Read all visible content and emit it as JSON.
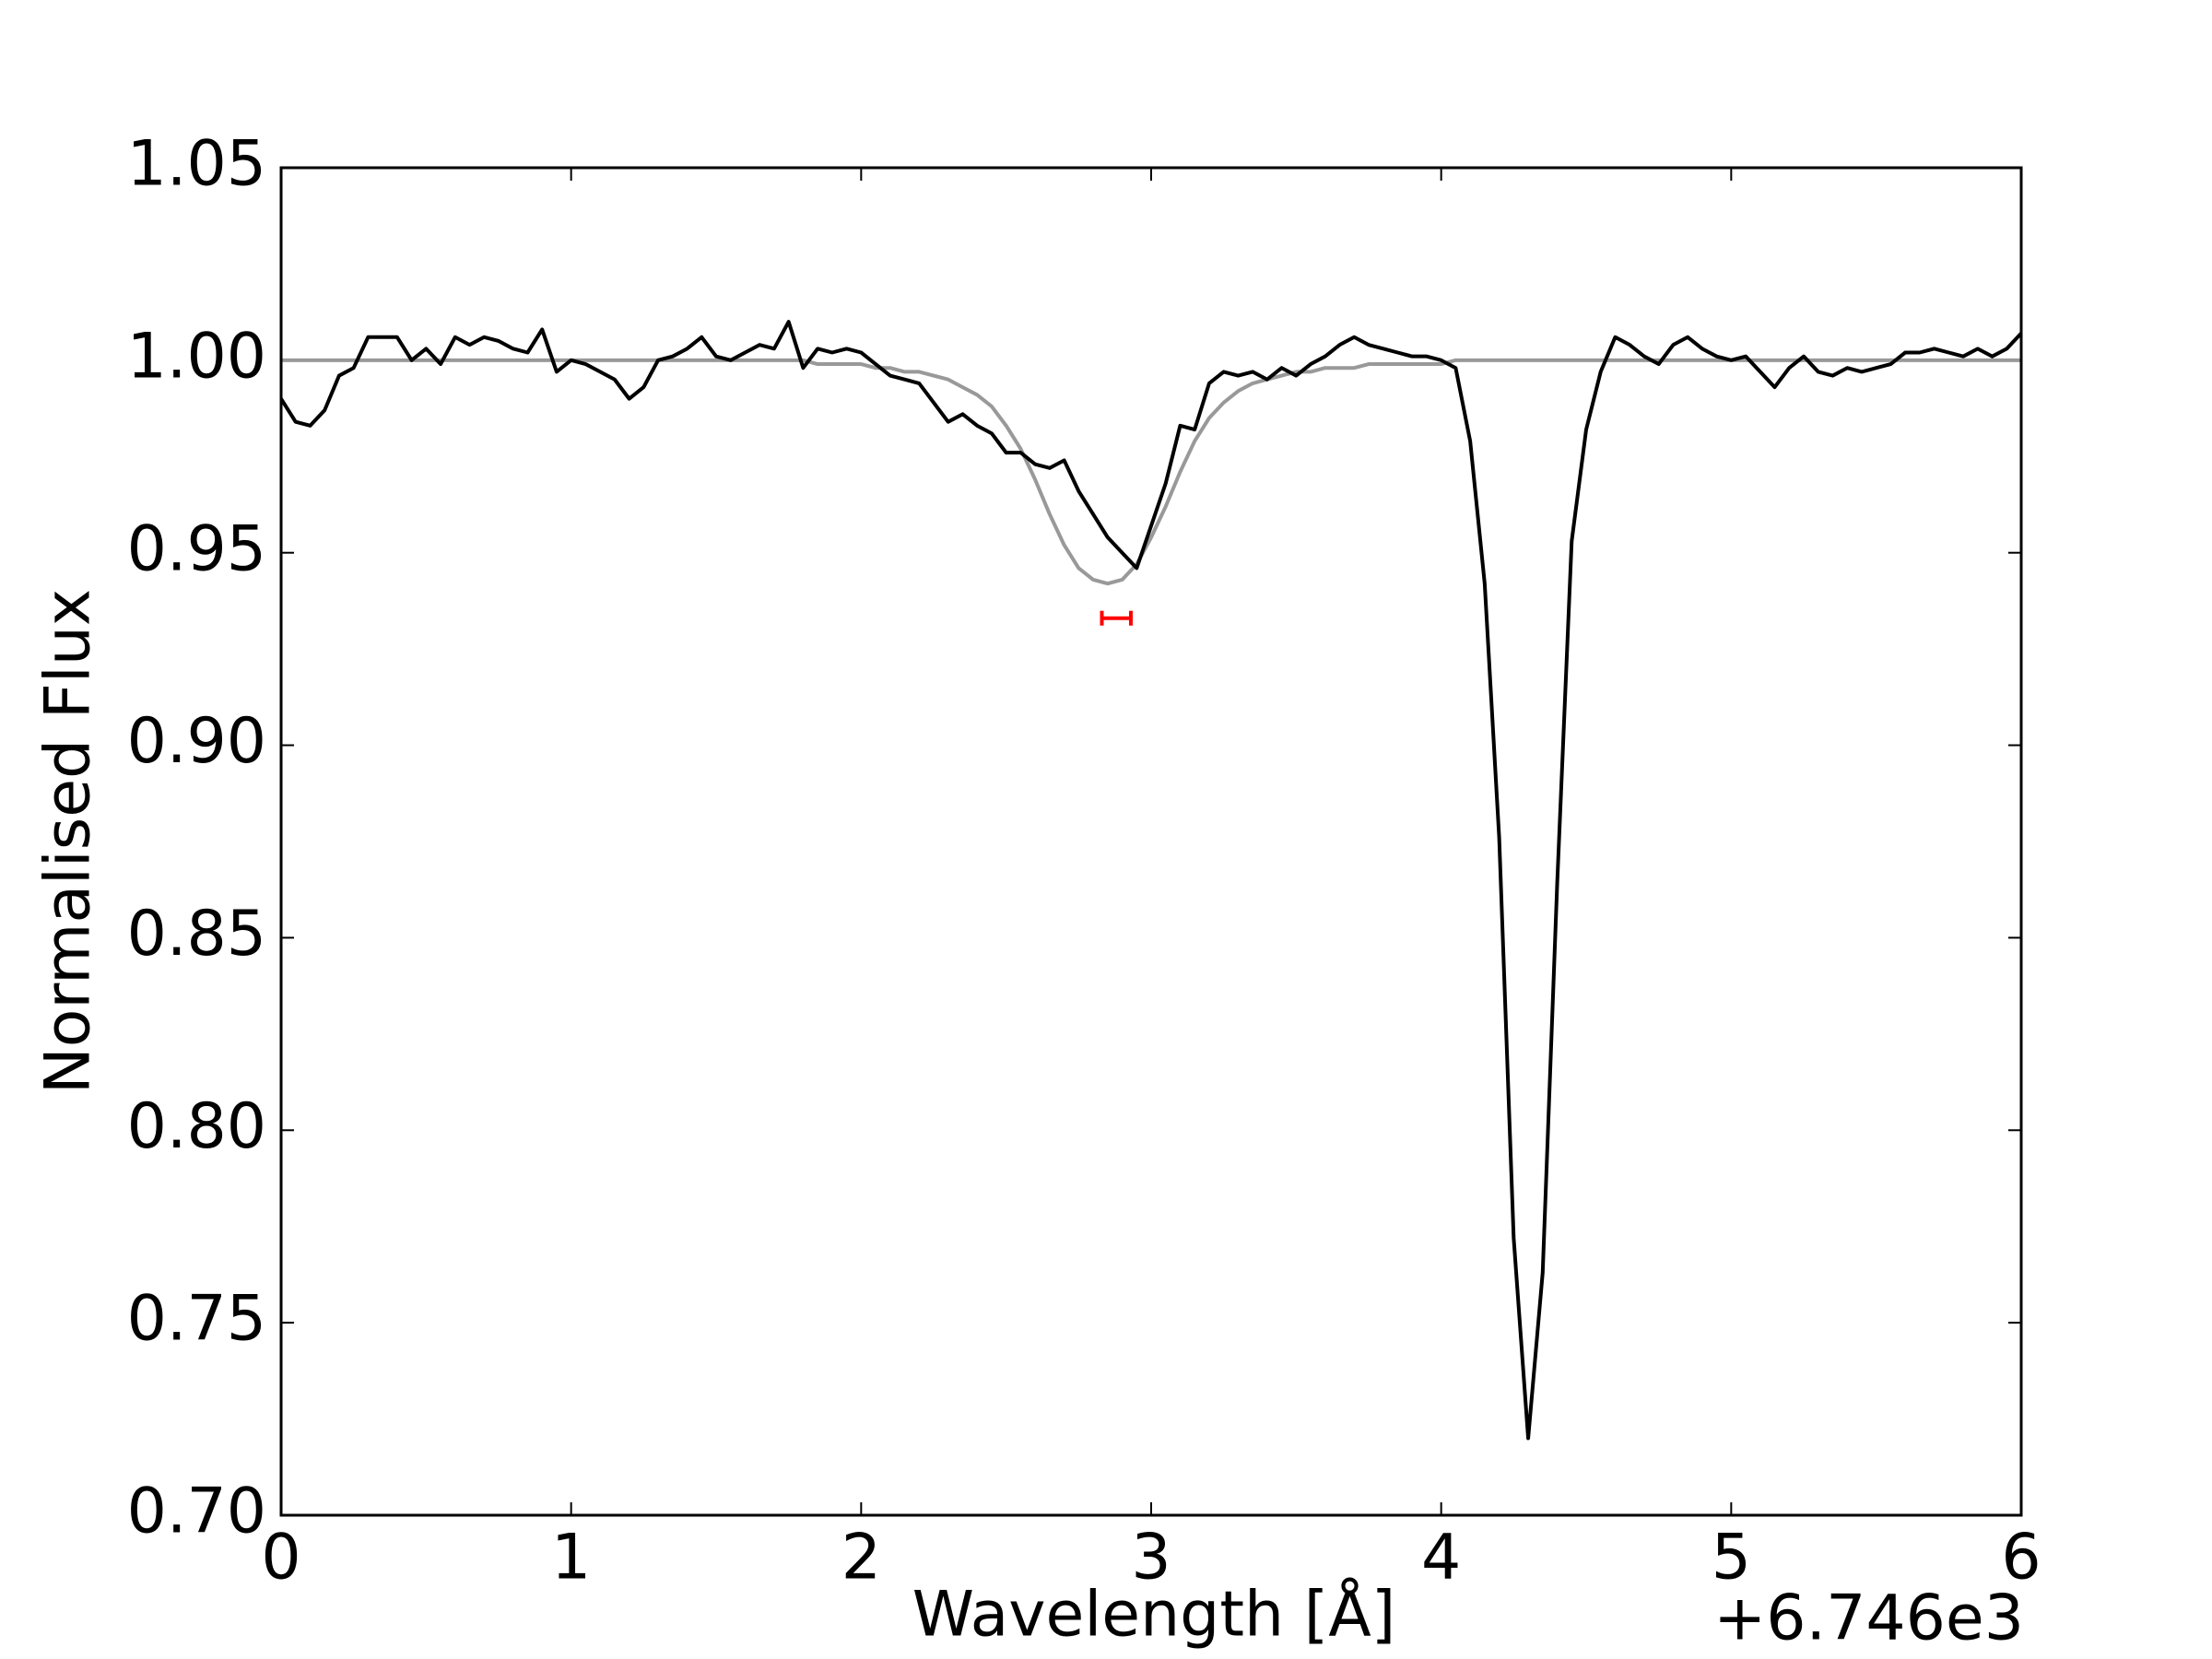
{
  "chart_data": {
    "type": "line",
    "x_label": "Wavelength [Å]",
    "y_label": "Normalised Flux",
    "x_offset_label": "+6.746e3",
    "x": [
      0,
      0.05,
      0.1,
      0.15,
      0.2,
      0.25,
      0.3,
      0.35,
      0.4,
      0.45,
      0.5,
      0.55,
      0.6,
      0.65,
      0.7,
      0.75,
      0.8,
      0.85,
      0.9,
      0.95,
      1,
      1.05,
      1.1,
      1.15,
      1.2,
      1.25,
      1.3,
      1.35,
      1.4,
      1.45,
      1.5,
      1.55,
      1.6,
      1.65,
      1.7,
      1.75,
      1.8,
      1.85,
      1.9,
      1.95,
      2,
      2.05,
      2.1,
      2.15,
      2.2,
      2.25,
      2.3,
      2.35,
      2.4,
      2.45,
      2.5,
      2.55,
      2.6,
      2.65,
      2.7,
      2.75,
      2.8,
      2.85,
      2.9,
      2.95,
      3,
      3.05,
      3.1,
      3.15,
      3.2,
      3.25,
      3.3,
      3.35,
      3.4,
      3.45,
      3.5,
      3.55,
      3.6,
      3.65,
      3.7,
      3.75,
      3.8,
      3.85,
      3.9,
      3.95,
      4,
      4.05,
      4.1,
      4.15,
      4.2,
      4.25,
      4.3,
      4.35,
      4.4,
      4.45,
      4.5,
      4.55,
      4.6,
      4.65,
      4.7,
      4.75,
      4.8,
      4.85,
      4.9,
      4.95,
      5,
      5.05,
      5.1,
      5.15,
      5.2,
      5.25,
      5.3,
      5.35,
      5.4,
      5.45,
      5.5,
      5.55,
      5.6,
      5.65,
      5.7,
      5.75,
      5.8,
      5.85,
      5.9,
      5.95,
      6
    ],
    "series": [
      {
        "color": "#000000",
        "values": [
          0.99,
          0.984,
          0.983,
          0.987,
          0.996,
          0.998,
          1.006,
          1.006,
          1.006,
          1.0,
          1.003,
          0.999,
          1.006,
          1.004,
          1.006,
          1.005,
          1.003,
          1.002,
          1.008,
          0.997,
          1.0,
          0.999,
          0.997,
          0.995,
          0.99,
          0.993,
          1.0,
          1.001,
          1.003,
          1.006,
          1.001,
          1.0,
          1.002,
          1.004,
          1.003,
          1.01,
          0.998,
          1.003,
          1.002,
          1.003,
          1.002,
          0.999,
          0.996,
          0.995,
          0.994,
          0.989,
          0.984,
          0.986,
          0.983,
          0.981,
          0.976,
          0.976,
          0.973,
          0.972,
          0.974,
          0.966,
          0.96,
          0.954,
          0.95,
          0.946,
          0.957,
          0.968,
          0.983,
          0.982,
          0.994,
          0.997,
          0.996,
          0.997,
          0.995,
          0.998,
          0.996,
          0.999,
          1.001,
          1.004,
          1.006,
          1.004,
          1.003,
          1.002,
          1.001,
          1.001,
          1.0,
          0.998,
          0.979,
          0.942,
          0.876,
          0.772,
          0.72,
          0.763,
          0.864,
          0.953,
          0.982,
          0.997,
          1.006,
          1.004,
          1.001,
          0.999,
          1.004,
          1.006,
          1.003,
          1.001,
          1.0,
          1.001,
          0.997,
          0.993,
          0.998,
          1.001,
          0.997,
          0.996,
          0.998,
          0.997,
          0.998,
          0.999,
          1.002,
          1.002,
          1.003,
          1.002,
          1.001,
          1.003,
          1.001,
          1.003,
          1.007
        ]
      },
      {
        "color": "#999999",
        "values": [
          1.0,
          1.0,
          1.0,
          1.0,
          1.0,
          1.0,
          1.0,
          1.0,
          1.0,
          1.0,
          1.0,
          1.0,
          1.0,
          1.0,
          1.0,
          1.0,
          1.0,
          1.0,
          1.0,
          1.0,
          1.0,
          1.0,
          1.0,
          1.0,
          1.0,
          1.0,
          1.0,
          1.0,
          1.0,
          1.0,
          1.0,
          1.0,
          1.0,
          1.0,
          1.0,
          1.0,
          1.0,
          0.999,
          0.999,
          0.999,
          0.999,
          0.998,
          0.998,
          0.997,
          0.997,
          0.996,
          0.995,
          0.993,
          0.991,
          0.988,
          0.983,
          0.977,
          0.969,
          0.96,
          0.952,
          0.946,
          0.943,
          0.942,
          0.943,
          0.947,
          0.954,
          0.962,
          0.971,
          0.979,
          0.985,
          0.989,
          0.992,
          0.994,
          0.995,
          0.996,
          0.997,
          0.997,
          0.998,
          0.998,
          0.998,
          0.999,
          0.999,
          0.999,
          0.999,
          0.999,
          0.999,
          1.0,
          1.0,
          1.0,
          1.0,
          1.0,
          1.0,
          1.0,
          1.0,
          1.0,
          1.0,
          1.0,
          1.0,
          1.0,
          1.0,
          1.0,
          1.0,
          1.0,
          1.0,
          1.0,
          1.0,
          1.0,
          1.0,
          1.0,
          1.0,
          1.0,
          1.0,
          1.0,
          1.0,
          1.0,
          1.0,
          1.0,
          1.0,
          1.0,
          1.0,
          1.0,
          1.0,
          1.0,
          1.0,
          1.0,
          1.0
        ]
      }
    ],
    "errorbar": {
      "x": 2.88,
      "y": 0.933,
      "xerr": 0.05,
      "color": "#ff0000"
    },
    "xlim": [
      0,
      6
    ],
    "xticks": [
      0,
      1,
      2,
      3,
      4,
      5,
      6
    ],
    "ylim": [
      0.7,
      1.05
    ],
    "yticks": [
      {
        "value": 0.7,
        "label": "0.70"
      },
      0.75,
      {
        "value": 0.8,
        "label": "0.80"
      },
      0.85,
      {
        "value": 0.9,
        "label": "0.90"
      },
      0.95,
      {
        "value": 1,
        "label": "1.00"
      },
      1.05
    ]
  }
}
